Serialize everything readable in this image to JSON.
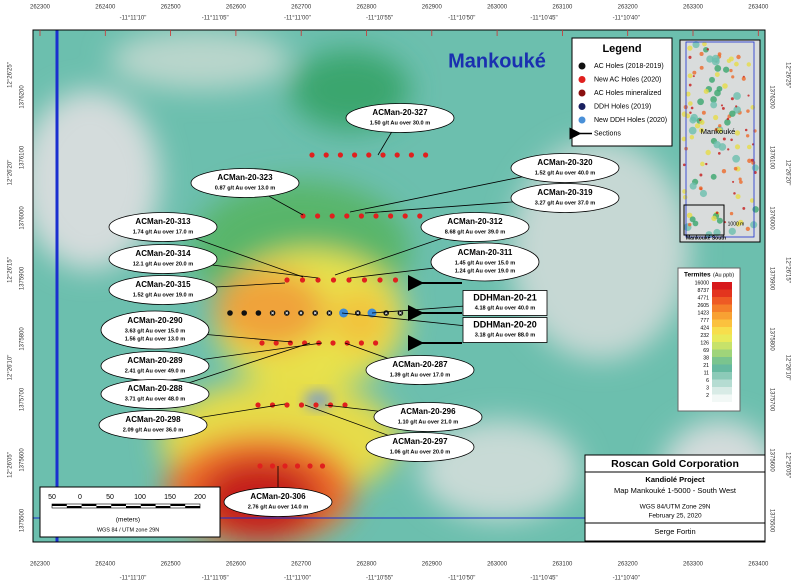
{
  "title": "Mankouké",
  "legend": {
    "title": "Legend",
    "items": [
      "AC Holes (2018-2019)",
      "New AC Holes (2020)",
      "AC Holes mineralized",
      "DDH Holes (2019)",
      "New DDH Holes (2020)",
      "Sections"
    ]
  },
  "grid": {
    "eastings": [
      "262300",
      "262400",
      "262500",
      "262600",
      "262700",
      "262800",
      "262900",
      "263000",
      "263100",
      "263200",
      "263300",
      "263400"
    ],
    "longitudes": [
      "-11°11'10\"",
      "-11°11'05\"",
      "-11°11'00\"",
      "-11°10'55\"",
      "-11°10'50\"",
      "-11°10'45\"",
      "-11°10'40\""
    ],
    "northings": [
      "1376200",
      "1376100",
      "1376000",
      "1375900",
      "1375800",
      "1375700",
      "1375600",
      "1375500"
    ],
    "latitudes": [
      "12°26'25\"",
      "12°26'20\"",
      "12°26'15\"",
      "12°26'10\"",
      "12°26'05\""
    ]
  },
  "holes": [
    {
      "name": "ACMan-20-327",
      "results": [
        "1.50 g/t Au over 30.0 m"
      ]
    },
    {
      "name": "ACMan-20-323",
      "results": [
        "0.87 g/t Au over 13.0 m"
      ]
    },
    {
      "name": "ACMan-20-320",
      "results": [
        "1.52 g/t Au over 40.0 m"
      ]
    },
    {
      "name": "ACMan-20-319",
      "results": [
        "3.27 g/t Au over 37.0 m"
      ]
    },
    {
      "name": "ACMan-20-313",
      "results": [
        "1.74 g/t Au over 17.0 m"
      ]
    },
    {
      "name": "ACMan-20-312",
      "results": [
        "8.68 g/t Au over 39.0 m"
      ]
    },
    {
      "name": "ACMan-20-314",
      "results": [
        "12.1 g/t Au over 20.0 m"
      ]
    },
    {
      "name": "ACMan-20-311",
      "results": [
        "1.45 g/t Au over 15.0 m",
        "1.24 g/t Au over 19.0 m"
      ]
    },
    {
      "name": "ACMan-20-315",
      "results": [
        "1.52 g/t Au over 19.0 m"
      ]
    },
    {
      "name": "DDHMan-20-21",
      "results": [
        "4.18 g/t Au over 40.0 m"
      ]
    },
    {
      "name": "DDHMan-20-20",
      "results": [
        "3.18 g/t Au over 88.0 m"
      ]
    },
    {
      "name": "ACMan-20-290",
      "results": [
        "3.63 g/t Au over 15.0 m",
        "1.56 g/t Au over 13.0 m"
      ]
    },
    {
      "name": "ACMan-20-289",
      "results": [
        "2.41 g/t Au over 49.0 m"
      ]
    },
    {
      "name": "ACMan-20-287",
      "results": [
        "1.39 g/t Au over 17.0 m"
      ]
    },
    {
      "name": "ACMan-20-288",
      "results": [
        "3.71 g/t Au over 48.0 m"
      ]
    },
    {
      "name": "ACMan-20-298",
      "results": [
        "2.09 g/t Au over 36.0 m"
      ]
    },
    {
      "name": "ACMan-20-296",
      "results": [
        "1.10 g/t Au over 21.0 m"
      ]
    },
    {
      "name": "ACMan-20-297",
      "results": [
        "1.06 g/t Au over 20.0 m"
      ]
    },
    {
      "name": "ACMan-20-306",
      "results": [
        "2.76 g/t Au over 14.0 m"
      ]
    }
  ],
  "termites": {
    "title": "Termites",
    "unit": "(Au ppb)",
    "values": [
      "16000",
      "8737",
      "4771",
      "2605",
      "1423",
      "777",
      "424",
      "232",
      "126",
      "69",
      "38",
      "21",
      "11",
      "6",
      "3",
      "2"
    ]
  },
  "title_block": {
    "company": "Roscan Gold Corporation",
    "project": "Kandiolé Project",
    "map": "Map Mankouké 1-5000 - South West",
    "datum": "WGS 84/UTM Zone 29N",
    "date": "February 25, 2020",
    "author": "Serge Fortin"
  },
  "scale_bar": {
    "labels": [
      "50",
      "0",
      "50",
      "100",
      "150",
      "200"
    ],
    "unit": "(meters)",
    "datum": "WGS 84 / UTM zone 29N"
  },
  "inset": {
    "label": "Mankouké",
    "sub_label": "Mankouké South",
    "scale": "1000 m"
  }
}
